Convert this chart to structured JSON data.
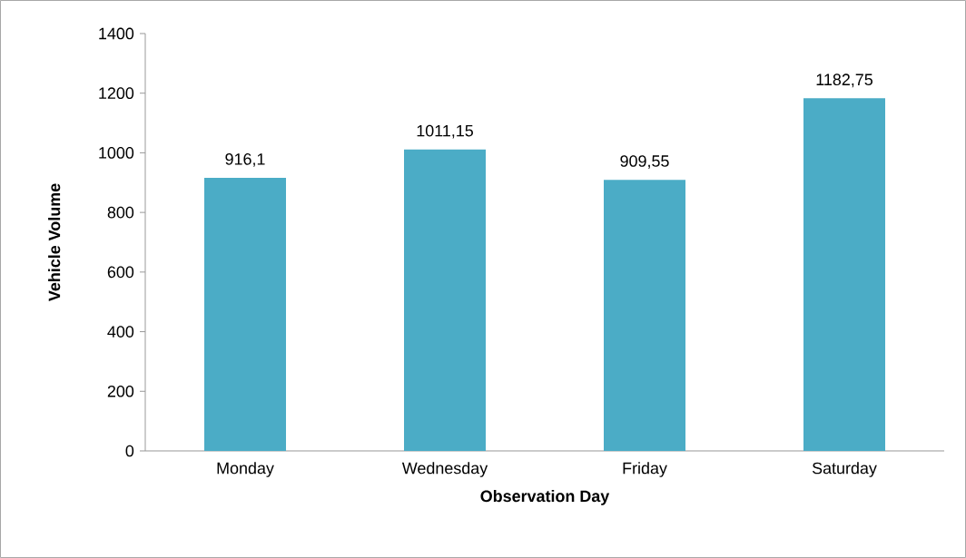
{
  "chart_data": {
    "type": "bar",
    "xlabel": "Observation Day",
    "ylabel": "Vehicle Volume",
    "categories": [
      "Monday",
      "Wednesday",
      "Friday",
      "Saturday"
    ],
    "values": [
      916.1,
      1011.15,
      909.55,
      1182.75
    ],
    "value_labels": [
      "916,1",
      "1011,15",
      "909,55",
      "1182,75"
    ],
    "color": "#4bacc6",
    "ylim": [
      0,
      1400
    ],
    "yticks": [
      0,
      200,
      400,
      600,
      800,
      1000,
      1200,
      1400
    ],
    "grid": false
  }
}
